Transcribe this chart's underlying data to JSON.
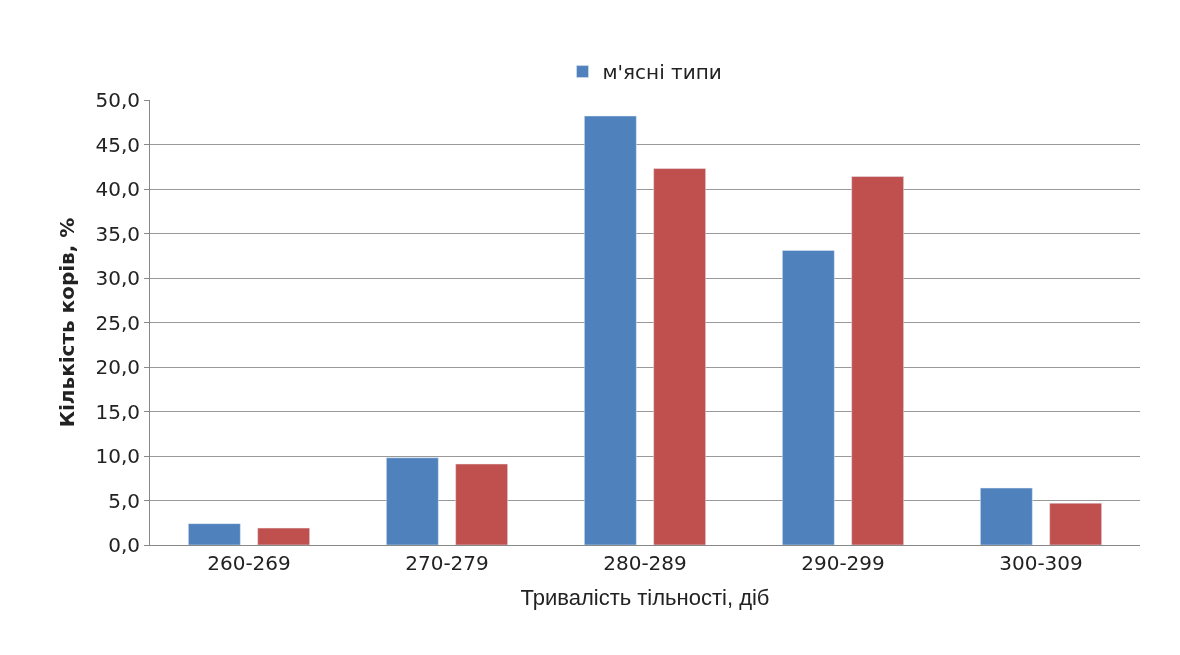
{
  "chart_data": {
    "type": "bar",
    "xlabel": "Тривалість тільності, діб",
    "ylabel": "Кількість корів, %",
    "categories": [
      "260-269",
      "270-279",
      "280-289",
      "290-299",
      "300-309"
    ],
    "series": [
      {
        "name": "м'ясні типи",
        "color": "#4f81bd",
        "values": [
          2.4,
          9.8,
          48.2,
          33.1,
          6.4
        ]
      },
      {
        "color": "#c0504d",
        "values": [
          1.9,
          9.1,
          42.3,
          41.4,
          4.7
        ]
      }
    ],
    "ylim": [
      0,
      50
    ],
    "yticks": [
      {
        "value": 0,
        "label": "0,0"
      },
      {
        "value": 5,
        "label": "5,0"
      },
      {
        "value": 10,
        "label": "10,0"
      },
      {
        "value": 15,
        "label": "15,0"
      },
      {
        "value": 20,
        "label": "20,0"
      },
      {
        "value": 25,
        "label": "25,0"
      },
      {
        "value": 30,
        "label": "30,0"
      },
      {
        "value": 35,
        "label": "35,0"
      },
      {
        "value": 40,
        "label": "40,0"
      },
      {
        "value": 45,
        "label": "45,0"
      },
      {
        "value": 50,
        "label": "50,0"
      }
    ],
    "grid": "y",
    "legend": "top"
  }
}
